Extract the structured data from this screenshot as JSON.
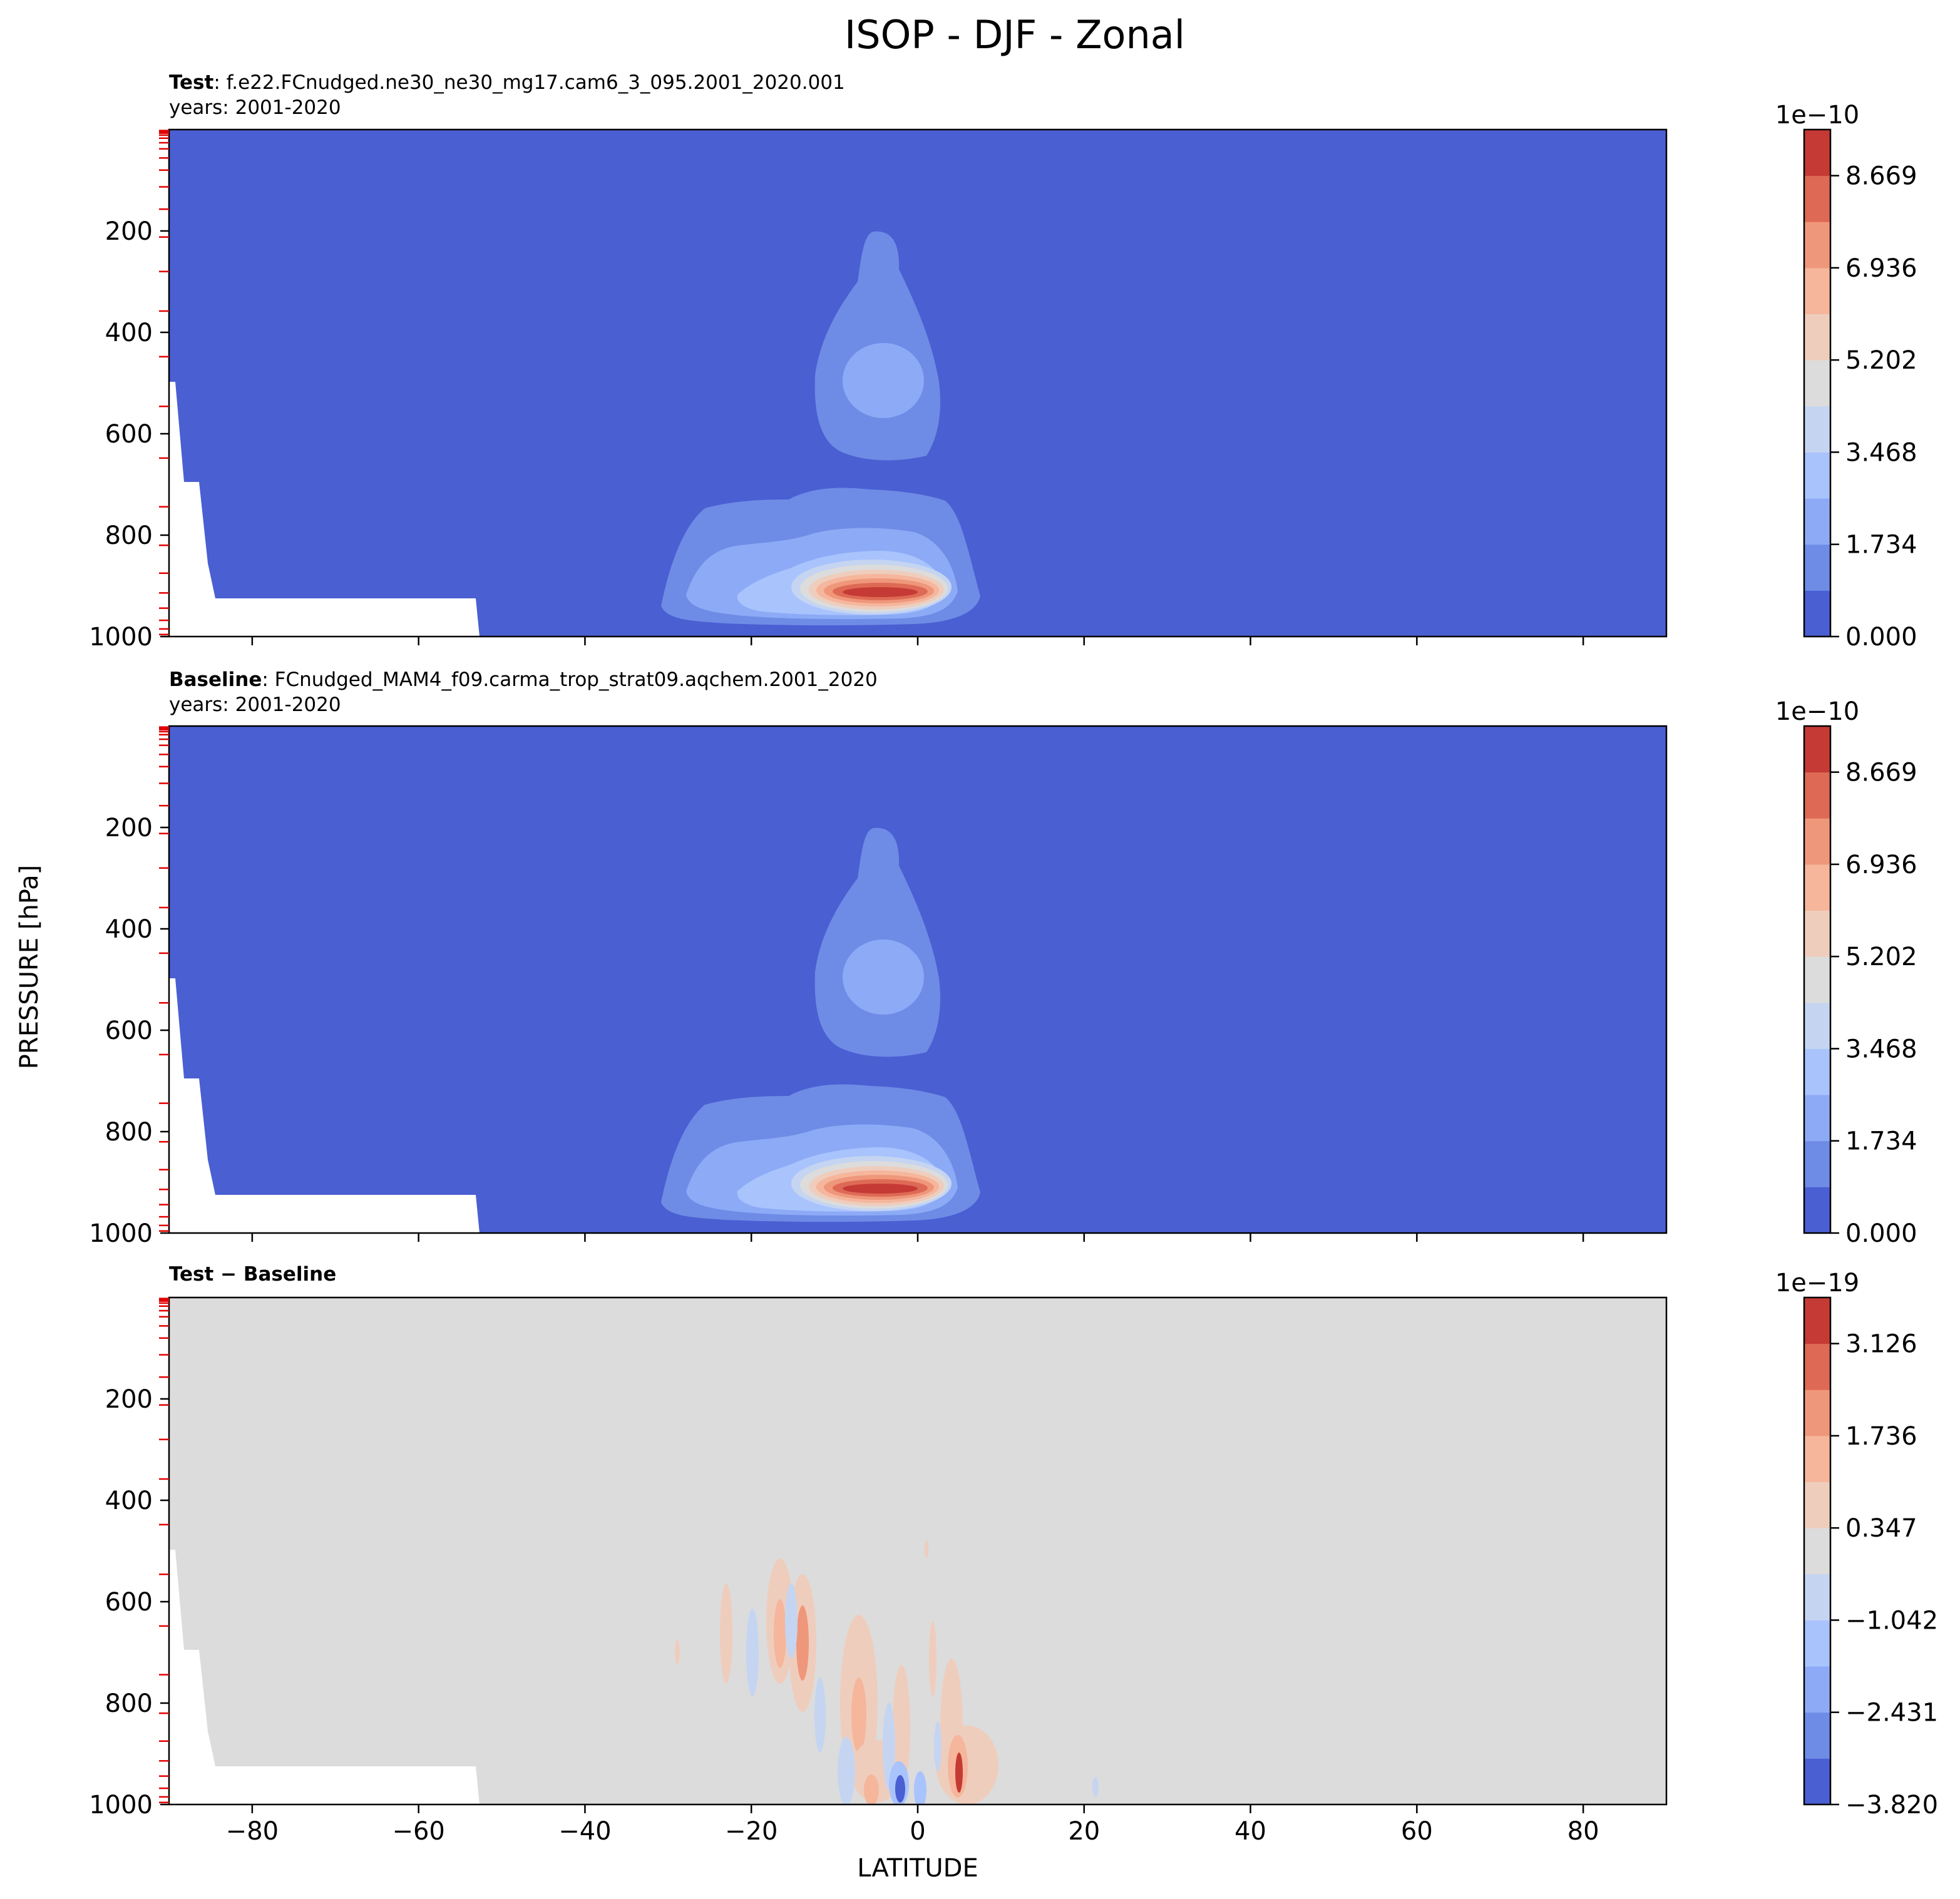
{
  "figure": {
    "title": "ISOP - DJF - Zonal"
  },
  "chart_data": [
    {
      "type": "contour",
      "panel": "Test",
      "subtitle_bold": "Test",
      "subtitle_text": ": f.e22.FCnudged.ne30_ne30_mg17.cam6_3_095.2001_2020.001",
      "years": "years: 2001-2020",
      "ylabel": "PRESSURE [hPa]",
      "xlim": [
        -90,
        90
      ],
      "ylim": [
        1000,
        0
      ],
      "yticks": [
        "200",
        "400",
        "600",
        "800",
        "1000"
      ],
      "colorbar": {
        "exponent": "1e−10",
        "ticks": [
          "0.000",
          "1.734",
          "3.468",
          "5.202",
          "6.936",
          "8.669"
        ],
        "levels": 11,
        "colors": [
          "#4a5fd2",
          "#6e8ce6",
          "#8daaf6",
          "#a9c3fd",
          "#c5d5f1",
          "#dcdcdc",
          "#efcdbd",
          "#f5b69c",
          "#ef977b",
          "#de6a55",
          "#c53a35"
        ]
      }
    },
    {
      "type": "contour",
      "panel": "Baseline",
      "subtitle_bold": "Baseline",
      "subtitle_text": ": FCnudged_MAM4_f09.carma_trop_strat09.aqchem.2001_2020",
      "years": "years: 2001-2020",
      "xlim": [
        -90,
        90
      ],
      "ylim": [
        1000,
        0
      ],
      "yticks": [
        "200",
        "400",
        "600",
        "800",
        "1000"
      ],
      "colorbar": {
        "exponent": "1e−10",
        "ticks": [
          "0.000",
          "1.734",
          "3.468",
          "5.202",
          "6.936",
          "8.669"
        ],
        "levels": 11,
        "colors": [
          "#4a5fd2",
          "#6e8ce6",
          "#8daaf6",
          "#a9c3fd",
          "#c5d5f1",
          "#dcdcdc",
          "#efcdbd",
          "#f5b69c",
          "#ef977b",
          "#de6a55",
          "#c53a35"
        ]
      }
    },
    {
      "type": "contour",
      "panel": "Difference",
      "subtitle_bold": "Test − Baseline",
      "xlabel": "LATITUDE",
      "xlim": [
        -90,
        90
      ],
      "ylim": [
        1000,
        0
      ],
      "xticks": [
        "−80",
        "−60",
        "−40",
        "−20",
        "0",
        "20",
        "40",
        "60",
        "80"
      ],
      "yticks": [
        "200",
        "400",
        "600",
        "800",
        "1000"
      ],
      "colorbar": {
        "exponent": "1e−19",
        "ticks": [
          "−3.820",
          "−2.431",
          "−1.042",
          "0.347",
          "1.736",
          "3.126"
        ],
        "levels": 11,
        "colors": [
          "#4a5fd2",
          "#6e8ce6",
          "#8daaf6",
          "#a9c3fd",
          "#c5d5f1",
          "#dcdcdc",
          "#efcdbd",
          "#f5b69c",
          "#ef977b",
          "#de6a55",
          "#c53a35"
        ]
      }
    }
  ]
}
